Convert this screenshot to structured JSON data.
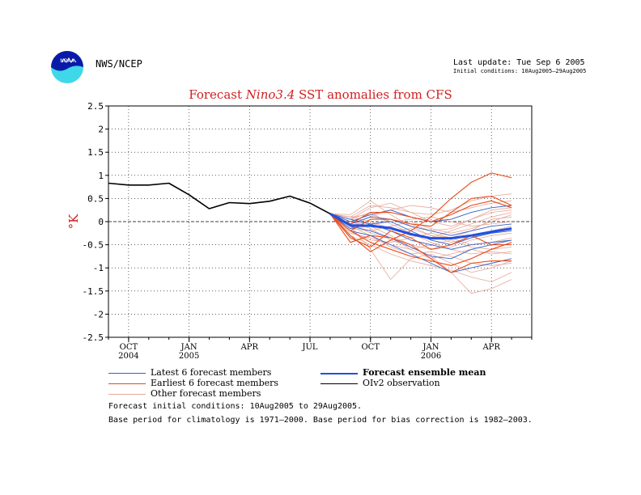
{
  "header": {
    "logo_text": "NOAA",
    "org": "NWS/NCEP",
    "last_update": "Last update: Tue Sep 6 2005",
    "initial_conditions_short": "Initial conditions: 10Aug2005–29Aug2005"
  },
  "colors": {
    "latest": "#3060c8",
    "earliest": "#e84a1a",
    "other": "#e8a89a",
    "mean": "#2050e0",
    "obs": "#000000",
    "title": "#d02020",
    "ylabel": "#d02020"
  },
  "chart_data": {
    "type": "line",
    "title_prefix": "Forecast ",
    "title_italic": "Nino3.4",
    "title_suffix": " SST anomalies from CFS",
    "ylabel": "°K",
    "ylim": [
      -2.5,
      2.5
    ],
    "yticks": [
      2.5,
      2,
      1.5,
      1,
      0.5,
      0,
      -0.5,
      -1,
      -1.5,
      -2,
      -2.5
    ],
    "ytick_labels": [
      "2.5",
      "2",
      "1.5",
      "1",
      "0.5",
      "0",
      "-0.5",
      "-1",
      "-1.5",
      "-2",
      "-2.5"
    ],
    "xlim": [
      0,
      21
    ],
    "xticks": [
      {
        "x": 1,
        "label": "OCT",
        "year": "2004"
      },
      {
        "x": 4,
        "label": "JAN",
        "year": "2005"
      },
      {
        "x": 7,
        "label": "APR",
        "year": ""
      },
      {
        "x": 10,
        "label": "JUL",
        "year": ""
      },
      {
        "x": 13,
        "label": "OCT",
        "year": ""
      },
      {
        "x": 16,
        "label": "JAN",
        "year": "2006"
      },
      {
        "x": 19,
        "label": "APR",
        "year": ""
      }
    ],
    "grid": true,
    "observation": {
      "name": "OIv2 observation",
      "x": [
        0,
        1,
        2,
        3,
        4,
        5,
        6,
        7,
        8,
        9,
        10,
        11
      ],
      "y": [
        0.83,
        0.79,
        0.79,
        0.83,
        0.58,
        0.28,
        0.41,
        0.39,
        0.44,
        0.55,
        0.4,
        0.17
      ]
    },
    "ensemble_mean": {
      "name": "Forecast ensemble mean",
      "x": [
        11,
        12,
        13,
        14,
        15,
        16,
        17,
        18,
        19,
        20
      ],
      "y": [
        0.17,
        -0.08,
        -0.09,
        -0.14,
        -0.27,
        -0.36,
        -0.36,
        -0.3,
        -0.22,
        -0.15
      ]
    },
    "forecast_x": [
      11,
      12,
      13,
      14,
      15,
      16,
      17,
      18,
      19,
      20
    ],
    "latest_members": {
      "name": "Latest 6 forecast members",
      "members": [
        [
          0.17,
          -0.05,
          0.1,
          0.05,
          -0.1,
          -0.2,
          -0.3,
          -0.2,
          -0.1,
          -0.05
        ],
        [
          0.17,
          -0.2,
          -0.3,
          -0.5,
          -0.7,
          -0.9,
          -1.1,
          -1.0,
          -0.9,
          -0.8
        ],
        [
          0.17,
          0.0,
          0.15,
          0.25,
          0.1,
          0.0,
          0.05,
          0.2,
          0.3,
          0.35
        ],
        [
          0.17,
          -0.1,
          -0.2,
          -0.35,
          -0.55,
          -0.75,
          -0.8,
          -0.6,
          -0.5,
          -0.4
        ],
        [
          0.17,
          0.05,
          -0.05,
          -0.2,
          -0.4,
          -0.5,
          -0.6,
          -0.5,
          -0.45,
          -0.4
        ],
        [
          0.17,
          -0.15,
          -0.05,
          0.0,
          -0.2,
          -0.4,
          -0.5,
          -0.35,
          -0.25,
          -0.2
        ]
      ]
    },
    "earliest_members": {
      "name": "Earliest 6 forecast members",
      "members": [
        [
          0.17,
          -0.45,
          -0.3,
          -0.35,
          -0.5,
          -0.8,
          -1.1,
          -0.9,
          -0.85,
          -0.85
        ],
        [
          0.17,
          -0.3,
          -0.65,
          -0.4,
          -0.2,
          0.1,
          0.5,
          0.85,
          1.05,
          0.95
        ],
        [
          0.17,
          -0.2,
          0.05,
          0.05,
          -0.05,
          -0.1,
          0.2,
          0.5,
          0.55,
          0.35
        ],
        [
          0.17,
          -0.35,
          -0.55,
          -0.2,
          -0.35,
          -0.6,
          -0.5,
          -0.3,
          -0.5,
          -0.5
        ],
        [
          0.17,
          -0.2,
          -0.45,
          -0.6,
          -0.75,
          -0.85,
          -0.95,
          -0.8,
          -0.6,
          -0.45
        ],
        [
          0.17,
          -0.05,
          0.2,
          0.2,
          0.1,
          0.0,
          0.15,
          0.35,
          0.45,
          0.3
        ]
      ]
    },
    "other_members": {
      "name": "Other forecast members",
      "members": [
        [
          0.17,
          0.1,
          0.35,
          0.3,
          0.2,
          0.15,
          0.25,
          0.45,
          0.55,
          0.6
        ],
        [
          0.17,
          -0.1,
          -0.6,
          -1.25,
          -0.8,
          -0.7,
          -0.9,
          -1.1,
          -1.0,
          -0.85
        ],
        [
          0.17,
          0.0,
          -0.15,
          -0.4,
          -0.55,
          -0.75,
          -1.1,
          -1.55,
          -1.45,
          -1.25
        ],
        [
          0.17,
          0.15,
          0.45,
          0.15,
          -0.1,
          -0.3,
          -0.35,
          -0.2,
          0.05,
          0.1
        ],
        [
          0.17,
          -0.25,
          -0.35,
          -0.5,
          -0.6,
          -0.5,
          -0.4,
          -0.55,
          -0.6,
          -0.55
        ],
        [
          0.17,
          0.05,
          0.2,
          -0.05,
          -0.25,
          -0.45,
          -0.6,
          -0.7,
          -0.65,
          -0.7
        ],
        [
          0.17,
          -0.15,
          -0.2,
          -0.1,
          0.0,
          -0.15,
          -0.25,
          -0.15,
          0.0,
          0.15
        ],
        [
          0.17,
          0.0,
          -0.1,
          -0.3,
          -0.5,
          -0.6,
          -0.55,
          -0.4,
          -0.3,
          -0.25
        ],
        [
          0.17,
          -0.05,
          0.1,
          0.25,
          0.35,
          0.3,
          0.2,
          0.3,
          0.4,
          0.45
        ],
        [
          0.17,
          -0.3,
          -0.5,
          -0.7,
          -0.85,
          -0.95,
          -1.05,
          -1.2,
          -1.3,
          -1.1
        ],
        [
          0.17,
          0.1,
          0.0,
          -0.15,
          -0.3,
          -0.35,
          -0.2,
          -0.05,
          0.1,
          0.2
        ],
        [
          0.17,
          -0.2,
          -0.4,
          -0.45,
          -0.35,
          -0.25,
          -0.35,
          -0.5,
          -0.45,
          -0.35
        ],
        [
          0.17,
          0.05,
          0.3,
          0.4,
          0.2,
          0.0,
          -0.1,
          0.05,
          0.2,
          0.25
        ],
        [
          0.17,
          -0.1,
          -0.3,
          -0.55,
          -0.7,
          -0.65,
          -0.75,
          -0.9,
          -0.95,
          -0.9
        ],
        [
          0.17,
          0.0,
          -0.05,
          -0.2,
          -0.15,
          -0.3,
          -0.45,
          -0.35,
          -0.2,
          -0.1
        ],
        [
          0.17,
          -0.15,
          -0.1,
          0.05,
          -0.05,
          -0.2,
          -0.15,
          0.05,
          0.25,
          0.3
        ],
        [
          0.17,
          -0.05,
          -0.25,
          -0.35,
          -0.6,
          -0.8,
          -0.7,
          -0.6,
          -0.7,
          -0.65
        ],
        [
          0.17,
          0.1,
          0.15,
          0.0,
          0.05,
          0.1,
          0.0,
          -0.1,
          -0.05,
          0.0
        ]
      ]
    }
  },
  "legend": {
    "latest": "Latest 6 forecast members",
    "earliest": "Earliest 6 forecast members",
    "other": "Other forecast members",
    "mean": "Forecast ensemble mean",
    "obs": "OIv2 observation"
  },
  "notes": {
    "line1": "Forecast initial conditions: 10Aug2005 to 29Aug2005.",
    "line2": "Base period for climatology is 1971–2000. Base period for bias correction is 1982–2003."
  }
}
